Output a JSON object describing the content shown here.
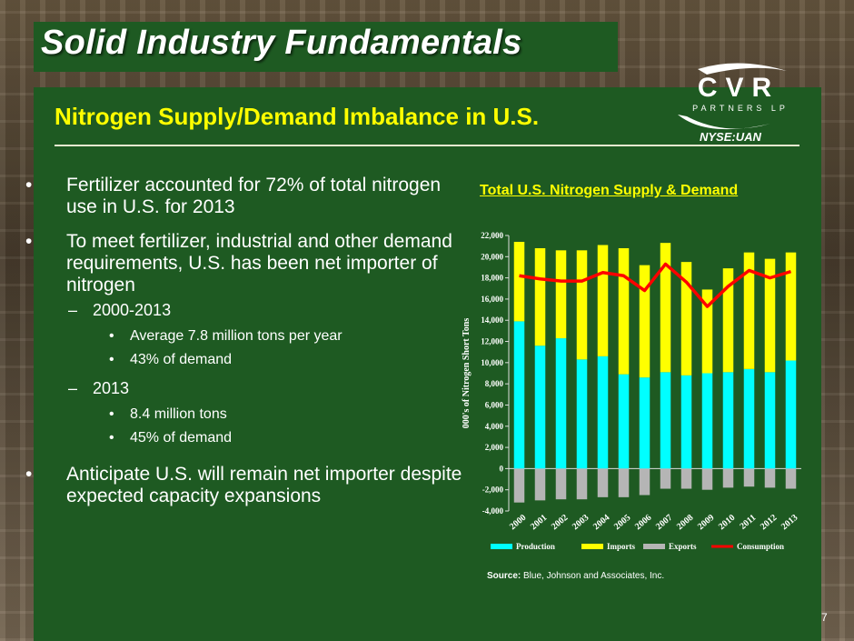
{
  "slide": {
    "title": "Solid Industry Fundamentals",
    "subtitle": "Nitrogen Supply/Demand Imbalance in U.S.",
    "ticker": "NYSE:UAN",
    "page_number": "7",
    "logo": {
      "main": "CVR",
      "sub": "PARTNERS LP"
    }
  },
  "bullets": [
    {
      "text": "Fertilizer accounted for 72% of total nitrogen use in U.S. for 2013"
    },
    {
      "text": "To meet fertilizer, industrial and other demand requirements, U.S. has been net importer of nitrogen"
    },
    {
      "text": "2000-2013"
    },
    {
      "text": "Average 7.8 million tons per year"
    },
    {
      "text": "43% of demand"
    },
    {
      "text": "2013"
    },
    {
      "text": "8.4 million tons"
    },
    {
      "text": "45% of demand"
    },
    {
      "text": "Anticipate U.S. will remain net importer despite expected capacity expansions"
    }
  ],
  "chart_title": "Total U.S. Nitrogen Supply & Demand",
  "source": {
    "label": "Source:",
    "text": "Blue, Johnson and Associates, Inc."
  },
  "colors": {
    "production": "#00ffff",
    "imports": "#ffff00",
    "exports": "#b5b5b5",
    "consumption": "#ff0000",
    "panel": "#1e5a22",
    "accent_text": "#ffff00"
  },
  "chart_data": {
    "type": "bar",
    "stacked": true,
    "title": "Total U.S. Nitrogen Supply & Demand",
    "ylabel": "000's of Nitrogen Short Tons",
    "xlabel": "",
    "ylim": [
      -4000,
      22000
    ],
    "yticks": [
      -4000,
      -2000,
      0,
      2000,
      4000,
      6000,
      8000,
      10000,
      12000,
      14000,
      16000,
      18000,
      20000,
      22000
    ],
    "ytick_labels": [
      "-4,000",
      "-2,000",
      "0",
      "2,000",
      "4,000",
      "6,000",
      "8,000",
      "10,000",
      "12,000",
      "14,000",
      "16,000",
      "18,000",
      "20,000",
      "22,000"
    ],
    "categories": [
      "2000",
      "2001",
      "2002",
      "2003",
      "2004",
      "2005",
      "2006",
      "2007",
      "2008",
      "2009",
      "2010",
      "2011",
      "2012",
      "2013"
    ],
    "series": [
      {
        "name": "Production",
        "kind": "bar",
        "values": [
          13900,
          11600,
          12300,
          10300,
          10600,
          8900,
          8600,
          9100,
          8800,
          9000,
          9100,
          9400,
          9100,
          10200
        ]
      },
      {
        "name": "Imports",
        "kind": "bar",
        "values": [
          7500,
          9200,
          8300,
          10300,
          10500,
          11900,
          10600,
          12200,
          10700,
          7900,
          9800,
          11000,
          10700,
          10200
        ]
      },
      {
        "name": "Exports",
        "kind": "bar",
        "values": [
          -3200,
          -3000,
          -2900,
          -2900,
          -2700,
          -2700,
          -2500,
          -1900,
          -1900,
          -2000,
          -1800,
          -1700,
          -1800,
          -1900
        ]
      },
      {
        "name": "Consumption",
        "kind": "line",
        "values": [
          18200,
          17900,
          17700,
          17700,
          18500,
          18200,
          16800,
          19300,
          17600,
          15300,
          17200,
          18700,
          18000,
          18600
        ]
      }
    ],
    "legend": [
      "Production",
      "Imports",
      "Exports",
      "Consumption"
    ],
    "legend_position": "bottom",
    "grid": false
  }
}
